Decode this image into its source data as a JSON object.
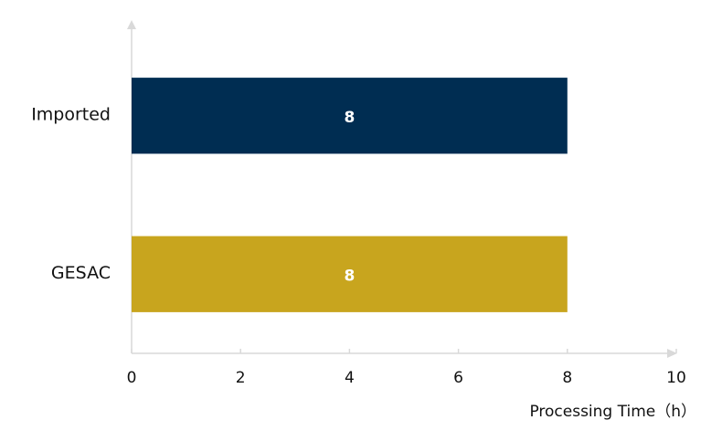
{
  "chart_data": {
    "type": "bar",
    "orientation": "horizontal",
    "categories": [
      "Imported",
      "GESAC"
    ],
    "values": [
      8,
      8
    ],
    "colors": [
      "#002d52",
      "#c8a51e"
    ],
    "xlabel": "Processing Time（h）",
    "xlim": [
      0,
      10
    ],
    "xticks": [
      0,
      2,
      4,
      6,
      8,
      10
    ],
    "grid": false
  }
}
